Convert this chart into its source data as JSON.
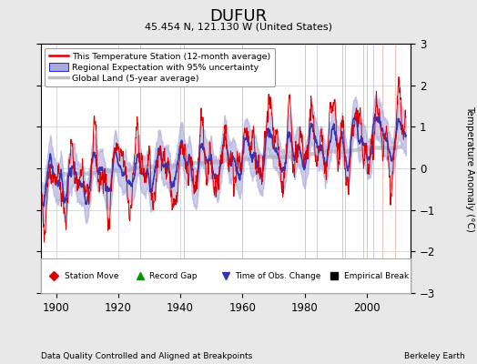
{
  "title": "DUFUR",
  "subtitle": "45.454 N, 121.130 W (United States)",
  "ylabel": "Temperature Anomaly (°C)",
  "footer_left": "Data Quality Controlled and Aligned at Breakpoints",
  "footer_right": "Berkeley Earth",
  "xlim": [
    1895,
    2014
  ],
  "ylim": [
    -3,
    3
  ],
  "yticks": [
    -3,
    -2,
    -1,
    0,
    1,
    2,
    3
  ],
  "xticks": [
    1900,
    1920,
    1940,
    1960,
    1980,
    2000
  ],
  "background_color": "#e8e8e8",
  "plot_bg_color": "#ffffff",
  "station_color": "#dd0000",
  "regional_color": "#3333bb",
  "regional_fill_color": "#aaaadd",
  "global_color": "#c0c0c0",
  "legend_labels": [
    "This Temperature Station (12-month average)",
    "Regional Expectation with 95% uncertainty",
    "Global Land (5-year average)"
  ],
  "marker_events": {
    "empirical_breaks": [
      1927,
      1941,
      1960,
      1980,
      1992,
      1999
    ],
    "station_moves": [
      1993,
      2000,
      2005,
      2009
    ],
    "time_obs_changes": [
      1984,
      2002
    ],
    "record_gaps": []
  },
  "seed": 42
}
